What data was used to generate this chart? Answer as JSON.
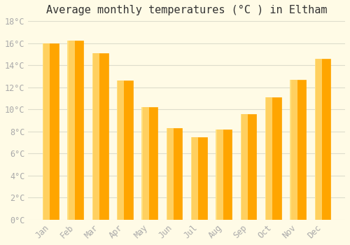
{
  "title": "Average monthly temperatures (°C ) in Eltham",
  "months": [
    "Jan",
    "Feb",
    "Mar",
    "Apr",
    "May",
    "Jun",
    "Jul",
    "Aug",
    "Sep",
    "Oct",
    "Nov",
    "Dec"
  ],
  "values": [
    16.0,
    16.2,
    15.1,
    12.6,
    10.2,
    8.3,
    7.5,
    8.2,
    9.6,
    11.1,
    12.7,
    14.6
  ],
  "bar_color_face": "#FFA500",
  "bar_color_edge": "#FFC84A",
  "bar_gradient_light": "#FFD060",
  "ylim": [
    0,
    18
  ],
  "yticks": [
    0,
    2,
    4,
    6,
    8,
    10,
    12,
    14,
    16,
    18
  ],
  "ytick_labels": [
    "0°C",
    "2°C",
    "4°C",
    "6°C",
    "8°C",
    "10°C",
    "12°C",
    "14°C",
    "16°C",
    "18°C"
  ],
  "background_color": "#FFFBE6",
  "grid_color": "#DDDDCC",
  "title_fontsize": 11,
  "tick_fontsize": 8.5,
  "tick_color": "#AAAAAA",
  "bar_width": 0.65
}
